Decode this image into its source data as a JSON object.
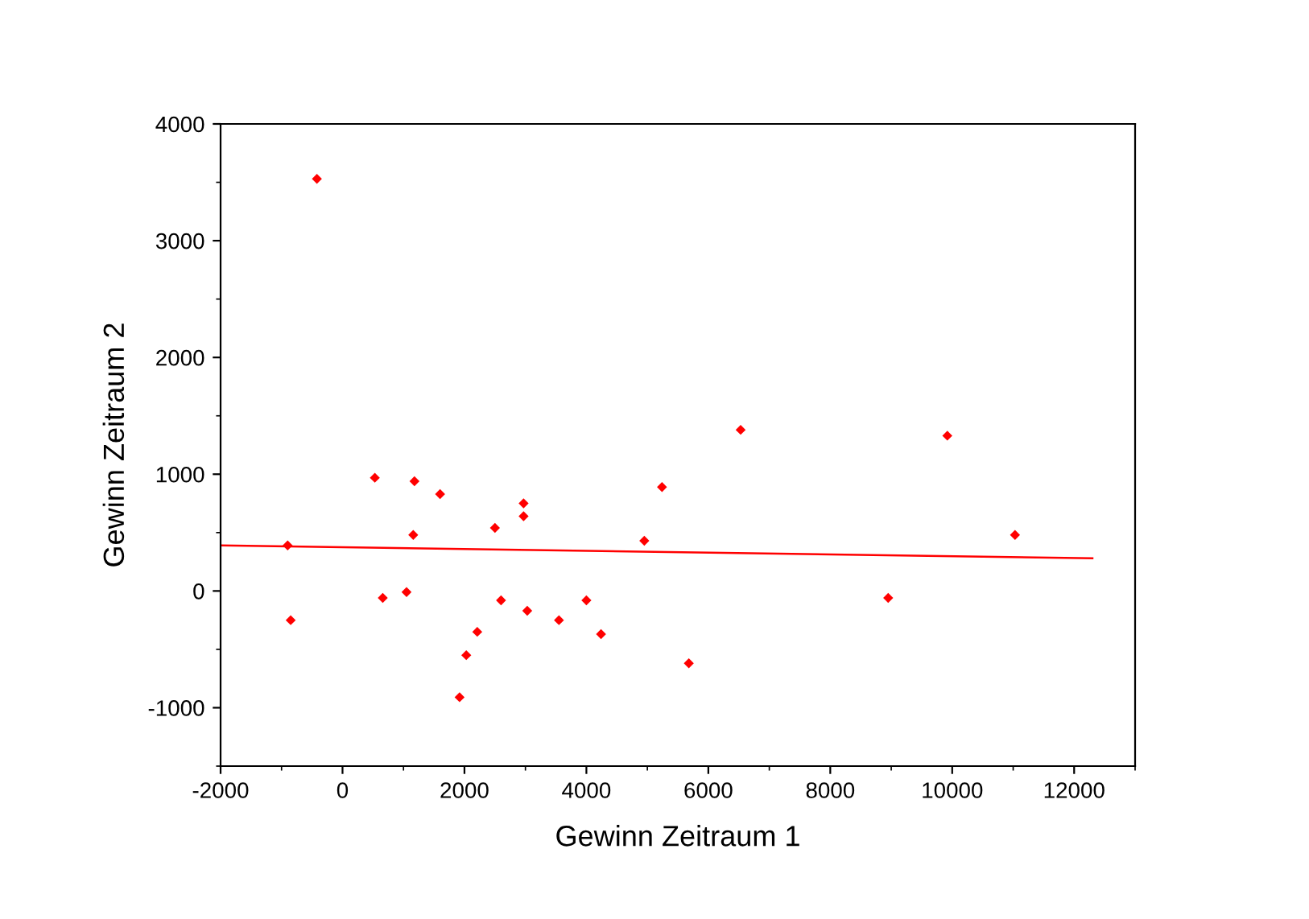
{
  "chart_data": {
    "type": "scatter",
    "xlabel": "Gewinn Zeitraum 1",
    "ylabel": "Gewinn Zeitraum 2",
    "series": [
      {
        "color": "#ff0000",
        "marker": "diamond",
        "x": [
          -420,
          -900,
          -850,
          530,
          660,
          1050,
          1180,
          1160,
          1600,
          1920,
          2030,
          2210,
          2500,
          2600,
          2970,
          2970,
          3030,
          3550,
          4000,
          4240,
          4950,
          5240,
          5680,
          6530,
          8950,
          9920,
          11030
        ],
        "values": [
          3530,
          390,
          -250,
          970,
          -60,
          -10,
          940,
          480,
          830,
          -910,
          -550,
          -350,
          540,
          -80,
          750,
          640,
          -170,
          -250,
          -80,
          -370,
          430,
          890,
          -620,
          1380,
          -60,
          1330,
          480
        ]
      },
      {
        "type": "line",
        "color": "#ff0000",
        "marker": "none",
        "x": [
          -2000,
          12300
        ],
        "values": [
          390,
          280
        ]
      }
    ],
    "xlim": [
      -2000,
      13000
    ],
    "xticks": [
      -2000,
      0,
      2000,
      4000,
      6000,
      8000,
      10000,
      12000
    ],
    "ylim": [
      -1500,
      4000
    ],
    "yticks": [
      -1000,
      0,
      1000,
      2000,
      3000,
      4000
    ],
    "grid": false,
    "legend": false
  }
}
